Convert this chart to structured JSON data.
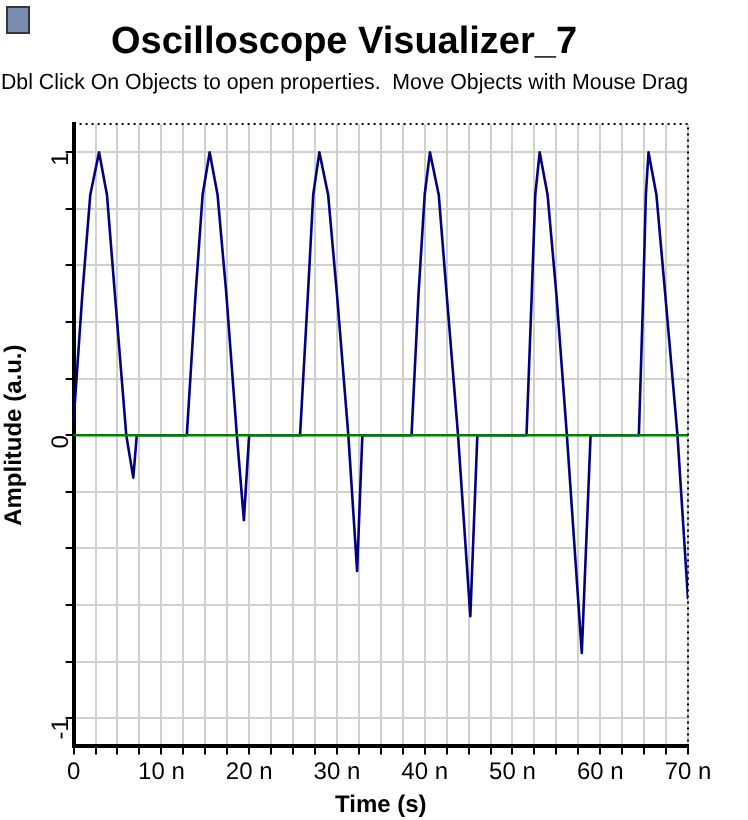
{
  "chart_data": {
    "type": "line",
    "title": "Oscilloscope Visualizer_7",
    "subtitle": "Dbl Click On Objects to open properties.  Move Objects with Mouse Drag",
    "xlabel": "Time (s)",
    "ylabel": "Amplitude (a.u.)",
    "x": [
      0,
      1.0,
      1.9,
      2.9,
      3.8,
      4.7,
      6.0,
      6.8,
      7.2,
      12.9,
      13.9,
      14.7,
      15.5,
      16.4,
      17.4,
      18.6,
      19.4,
      20.0,
      25.8,
      26.7,
      27.3,
      28.0,
      29.0,
      30.0,
      31.3,
      32.3,
      32.9,
      38.5,
      39.3,
      40.0,
      40.6,
      41.6,
      42.5,
      43.8,
      45.2,
      46.0,
      51.6,
      52.2,
      52.6,
      53.1,
      54.0,
      55.0,
      56.2,
      57.9,
      58.9,
      64.4,
      64.9,
      65.2,
      65.5,
      66.4,
      67.4,
      68.8,
      70
    ],
    "series": [
      {
        "color": "#000080",
        "values": [
          0.05,
          0.5,
          0.85,
          1.0,
          0.85,
          0.5,
          0,
          -0.15,
          0,
          0,
          0.5,
          0.85,
          1.0,
          0.85,
          0.5,
          0,
          -0.3,
          0,
          0,
          0.5,
          0.85,
          1.0,
          0.85,
          0.5,
          0,
          -0.48,
          0,
          0,
          0.5,
          0.85,
          1.0,
          0.85,
          0.5,
          0,
          -0.64,
          0,
          0,
          0.5,
          0.85,
          1.0,
          0.85,
          0.5,
          0,
          -0.77,
          0,
          0,
          0.5,
          0.85,
          1.0,
          0.85,
          0.5,
          0,
          -0.58
        ]
      }
    ],
    "xlim": [
      0,
      70
    ],
    "xticks": [
      0,
      {
        "value": 2.5,
        "label": null
      },
      {
        "value": 5,
        "label": null
      },
      {
        "value": 7.5,
        "label": null
      },
      {
        "value": 10,
        "label": "10 n"
      },
      {
        "value": 12.5,
        "label": null
      },
      {
        "value": 15,
        "label": null
      },
      {
        "value": 17.5,
        "label": null
      },
      {
        "value": 20,
        "label": "20 n"
      },
      {
        "value": 22.5,
        "label": null
      },
      {
        "value": 25,
        "label": null
      },
      {
        "value": 27.5,
        "label": null
      },
      {
        "value": 30,
        "label": "30 n"
      },
      {
        "value": 32.5,
        "label": null
      },
      {
        "value": 35,
        "label": null
      },
      {
        "value": 37.5,
        "label": null
      },
      {
        "value": 40,
        "label": "40 n"
      },
      {
        "value": 42.5,
        "label": null
      },
      {
        "value": 45,
        "label": null
      },
      {
        "value": 47.5,
        "label": null
      },
      {
        "value": 50,
        "label": "50 n"
      },
      {
        "value": 52.5,
        "label": null
      },
      {
        "value": 55,
        "label": null
      },
      {
        "value": 57.5,
        "label": null
      },
      {
        "value": 60,
        "label": "60 n"
      },
      {
        "value": 62.5,
        "label": null
      },
      {
        "value": 65,
        "label": null
      },
      {
        "value": 67.5,
        "label": null
      },
      {
        "value": 70,
        "label": "70 n"
      }
    ],
    "ylim": [
      -1.1,
      1.1
    ],
    "yticks": [
      -1,
      {
        "value": -0.8,
        "label": null
      },
      {
        "value": -0.6,
        "label": null
      },
      {
        "value": -0.4,
        "label": null
      },
      {
        "value": -0.2,
        "label": null
      },
      0,
      {
        "value": 0.2,
        "label": null
      },
      {
        "value": 0.4,
        "label": null
      },
      {
        "value": 0.6,
        "label": null
      },
      {
        "value": 0.8,
        "label": null
      },
      1
    ],
    "ref_lines": [
      {
        "axis": "y",
        "value": 0,
        "color": "#008000"
      }
    ],
    "grid": true,
    "legend": false,
    "marker": "none",
    "line_style": "solid"
  }
}
